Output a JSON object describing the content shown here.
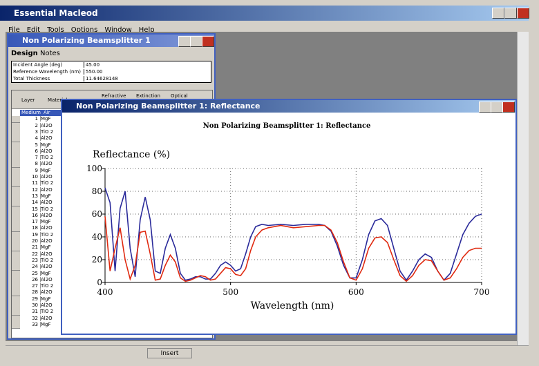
{
  "app": {
    "title": "Essential Macleod",
    "menu": [
      "File",
      "Edit",
      "Tools",
      "Options",
      "Window",
      "Help"
    ]
  },
  "design_window": {
    "title": "Non Polarizing Beamsplitter 1",
    "tabs": [
      "Design",
      "Notes"
    ],
    "fields": [
      {
        "label": "Incident Angle (deg)",
        "value": "45.00"
      },
      {
        "label": "Reference Wavelength (nm)",
        "value": "550.00"
      },
      {
        "label": "Total Thickness",
        "value": "11.64628148"
      }
    ],
    "table": {
      "headers": [
        "Layer",
        "Material",
        "Refractive",
        "Extinction",
        "Optical"
      ],
      "medium": [
        "Medium",
        "Air"
      ],
      "rows": [
        [
          "1",
          "MgF"
        ],
        [
          "2",
          "Al2O"
        ],
        [
          "3",
          "TiO 2"
        ],
        [
          "4",
          "Al2O"
        ],
        [
          "5",
          "MgF"
        ],
        [
          "6",
          "Al2O"
        ],
        [
          "7",
          "TiO 2"
        ],
        [
          "8",
          "Al2O"
        ],
        [
          "9",
          "MgF"
        ],
        [
          "10",
          "Al2O"
        ],
        [
          "11",
          "TiO 2"
        ],
        [
          "12",
          "Al2O"
        ],
        [
          "13",
          "MgF"
        ],
        [
          "14",
          "Al2O"
        ],
        [
          "15",
          "TiO 2"
        ],
        [
          "16",
          "Al2O"
        ],
        [
          "17",
          "MgF"
        ],
        [
          "18",
          "Al2O"
        ],
        [
          "19",
          "TiO 2"
        ],
        [
          "20",
          "Al2O"
        ],
        [
          "21",
          "MgF"
        ],
        [
          "22",
          "Al2O"
        ],
        [
          "23",
          "TiO 2"
        ],
        [
          "24",
          "Al2O"
        ],
        [
          "25",
          "MgF"
        ],
        [
          "26",
          "Al2O"
        ],
        [
          "27",
          "TiO 2"
        ],
        [
          "28",
          "Al2O"
        ],
        [
          "29",
          "MgF"
        ],
        [
          "30",
          "Al2O"
        ],
        [
          "31",
          "TiO 2"
        ],
        [
          "32",
          "Al2O"
        ],
        [
          "33",
          "MgF"
        ]
      ]
    }
  },
  "plot_window": {
    "title": "Non Polarizing Beamsplitter 1: Reflectance"
  },
  "chart_data": {
    "type": "line",
    "title": "Non Polarizing Beamsplitter 1: Reflectance",
    "y_label": "Reflectance (%)",
    "x_label": "Wavelength (nm)",
    "xlim": [
      400,
      700
    ],
    "xticks": [
      400,
      500,
      600,
      700
    ],
    "ylim": [
      0,
      100
    ],
    "yticks": [
      0,
      20,
      40,
      60,
      80,
      100
    ],
    "grid": true,
    "x": [
      400,
      404,
      408,
      412,
      416,
      420,
      424,
      428,
      432,
      436,
      440,
      444,
      448,
      452,
      456,
      460,
      464,
      468,
      472,
      476,
      480,
      484,
      488,
      492,
      496,
      500,
      504,
      508,
      512,
      516,
      520,
      525,
      530,
      540,
      550,
      560,
      570,
      575,
      580,
      585,
      590,
      595,
      600,
      605,
      610,
      615,
      620,
      625,
      630,
      635,
      640,
      645,
      650,
      655,
      660,
      665,
      670,
      675,
      680,
      685,
      690,
      695,
      700
    ],
    "series": [
      {
        "color": "#2a2a9a",
        "values": [
          83,
          70,
          10,
          65,
          80,
          30,
          5,
          55,
          75,
          55,
          10,
          8,
          30,
          42,
          30,
          8,
          2,
          3,
          5,
          5,
          3,
          3,
          8,
          15,
          18,
          15,
          10,
          12,
          25,
          40,
          49,
          51,
          50,
          51,
          50,
          51,
          51,
          50,
          45,
          32,
          15,
          4,
          4,
          20,
          42,
          54,
          56,
          50,
          30,
          10,
          2,
          10,
          20,
          25,
          22,
          10,
          2,
          8,
          25,
          42,
          52,
          58,
          60
        ]
      },
      {
        "color": "#e02a10",
        "values": [
          58,
          10,
          30,
          48,
          20,
          3,
          15,
          44,
          45,
          25,
          2,
          3,
          15,
          24,
          18,
          4,
          1,
          2,
          4,
          6,
          5,
          2,
          3,
          8,
          13,
          12,
          7,
          6,
          12,
          28,
          40,
          46,
          48,
          50,
          48,
          49,
          50,
          50,
          46,
          35,
          18,
          4,
          2,
          12,
          30,
          39,
          40,
          35,
          20,
          6,
          1,
          6,
          15,
          20,
          19,
          10,
          2,
          4,
          12,
          22,
          28,
          30,
          30
        ]
      }
    ]
  },
  "status_bar": {
    "mode": "Insert"
  }
}
